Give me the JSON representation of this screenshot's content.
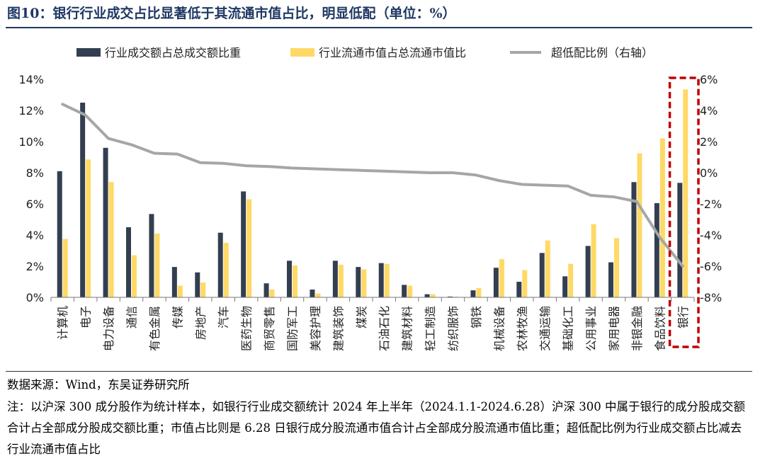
{
  "title": "图10：银行行业成交占比显著低于其流通市值占比，明显低配（单位：%）",
  "source": "数据来源：Wind，东吴证券研究所",
  "note": "注：以沪深 300 成分股作为统计样本，如银行行业成交额统计 2024 年上半年（2024.1.1-2024.6.28）沪深 300 中属于银行的成分股成交额合计占全部成分股成交额比重；市值占比则是 6.28 日银行成分股流通市值合计占全部成分股流通市值比重；超低配比例为行业成交额占比减去行业流通市值占比",
  "chart_data": {
    "type": "bar",
    "categories": [
      "计算机",
      "电子",
      "电力设备",
      "通信",
      "有色金属",
      "传媒",
      "房地产",
      "汽车",
      "医药生物",
      "商贸零售",
      "国防军工",
      "美容护理",
      "建筑装饰",
      "煤炭",
      "石油石化",
      "建筑材料",
      "轻工制造",
      "纺织服饰",
      "钢铁",
      "机械设备",
      "农林牧渔",
      "交通运输",
      "基础化工",
      "公用事业",
      "家用电器",
      "非银金融",
      "食品饮料",
      "银行"
    ],
    "series": [
      {
        "name": "行业成交额占总成交额比重",
        "axis": "left",
        "color": "#333f50",
        "values": [
          8.1,
          12.5,
          9.6,
          4.5,
          5.35,
          1.95,
          1.6,
          4.15,
          6.8,
          0.9,
          2.35,
          0.5,
          2.35,
          1.95,
          2.2,
          0.8,
          0.2,
          0.05,
          0.45,
          1.9,
          1.0,
          2.85,
          1.35,
          3.3,
          2.25,
          7.4,
          6.05,
          7.35
        ]
      },
      {
        "name": "行业流通市值占总流通市值比",
        "axis": "left",
        "color": "#ffd966",
        "values": [
          3.75,
          8.85,
          7.4,
          2.7,
          4.1,
          0.75,
          0.95,
          3.5,
          6.3,
          0.5,
          2.05,
          0.25,
          2.1,
          1.8,
          2.15,
          0.75,
          0.2,
          0.05,
          0.6,
          2.45,
          1.75,
          3.65,
          2.15,
          4.7,
          3.8,
          9.25,
          10.2,
          13.35
        ]
      },
      {
        "name": "超低配比例（右轴）",
        "axis": "right",
        "type": "line",
        "color": "#a6a6a6",
        "values": [
          4.4,
          3.7,
          2.2,
          1.8,
          1.25,
          1.2,
          0.65,
          0.6,
          0.45,
          0.4,
          0.3,
          0.25,
          0.2,
          0.15,
          0.1,
          0.05,
          0.0,
          0.0,
          -0.15,
          -0.5,
          -0.75,
          -0.8,
          -0.85,
          -1.45,
          -1.55,
          -1.85,
          -4.15,
          -6.0
        ]
      }
    ],
    "y_left": {
      "ticks": [
        "0%",
        "2%",
        "4%",
        "6%",
        "8%",
        "10%",
        "12%",
        "14%"
      ],
      "ylim": [
        0,
        14
      ]
    },
    "y_right": {
      "ticks": [
        "-8%",
        "-6%",
        "-4%",
        "-2%",
        "0%",
        "2%",
        "4%",
        "6%"
      ],
      "ylim": [
        -8,
        6
      ]
    },
    "highlight": {
      "category": "银行",
      "style": "dashed-box",
      "color": "#c00000"
    },
    "legend": "top"
  }
}
